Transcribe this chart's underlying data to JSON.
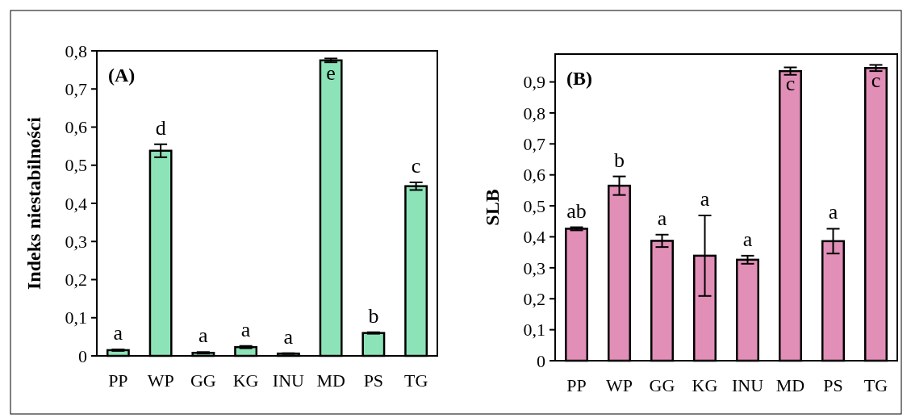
{
  "chart_data": [
    {
      "type": "bar",
      "title": "(A)",
      "ylabel": "Indeks niestabilności",
      "categories": [
        "PP",
        "WP",
        "GG",
        "KG",
        "INU",
        "MD",
        "PS",
        "TG"
      ],
      "values": [
        0.015,
        0.538,
        0.008,
        0.023,
        0.006,
        0.775,
        0.06,
        0.445
      ],
      "errors": [
        0.002,
        0.017,
        0.002,
        0.003,
        0.001,
        0.005,
        0.002,
        0.01
      ],
      "color": "#8de3b8",
      "ylim": [
        0,
        0.8
      ],
      "yticks": [
        0,
        {
          "value": 0.1,
          "label": "0,1"
        },
        {
          "value": 0.2,
          "label": "0,2"
        },
        {
          "value": 0.3,
          "label": "0,3"
        },
        {
          "value": 0.4,
          "label": "0,4"
        },
        {
          "value": 0.5,
          "label": "0,5"
        },
        {
          "value": 0.6,
          "label": "0,6"
        },
        {
          "value": 0.7,
          "label": "0,7"
        },
        {
          "value": 0.8,
          "label": "0,8"
        }
      ],
      "annotations": [
        "a",
        "d",
        "a",
        "a",
        "a",
        "e",
        "b",
        "c"
      ]
    },
    {
      "type": "bar",
      "title": "(B)",
      "ylabel": "SLB",
      "categories": [
        "PP",
        "WP",
        "GG",
        "KG",
        "INU",
        "MD",
        "PS",
        "TG"
      ],
      "values": [
        0.426,
        0.565,
        0.387,
        0.339,
        0.326,
        0.935,
        0.386,
        0.945
      ],
      "errors": [
        0.005,
        0.03,
        0.02,
        0.13,
        0.013,
        0.012,
        0.04,
        0.01
      ],
      "color": "#e28fb7",
      "ylim": [
        0,
        0.99
      ],
      "yticks": [
        0,
        {
          "value": 0.1,
          "label": "0,1"
        },
        {
          "value": 0.2,
          "label": "0,2"
        },
        {
          "value": 0.3,
          "label": "0,3"
        },
        {
          "value": 0.4,
          "label": "0,4"
        },
        {
          "value": 0.5,
          "label": "0,5"
        },
        {
          "value": 0.6,
          "label": "0,6"
        },
        {
          "value": 0.7,
          "label": "0,7"
        },
        {
          "value": 0.8,
          "label": "0,8"
        },
        {
          "value": 0.9,
          "label": "0,9"
        }
      ],
      "annotations": [
        "ab",
        "b",
        "a",
        "a",
        "a",
        "c",
        "a",
        "c"
      ]
    }
  ]
}
